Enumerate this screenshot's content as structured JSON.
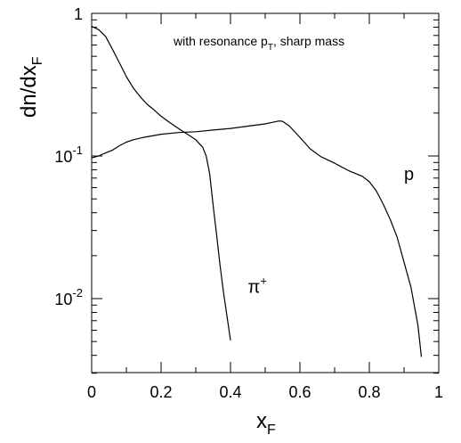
{
  "chart_data": {
    "type": "line",
    "annotation": {
      "prefix": "with resonance p",
      "subscript": "T",
      "suffix": ", sharp mass"
    },
    "xlabel": {
      "main": "x",
      "sub": "F"
    },
    "ylabel": {
      "main": "dn/dx",
      "sub": "F"
    },
    "xlim": [
      0,
      1
    ],
    "ylim": [
      0.003,
      1
    ],
    "y_scale": "log",
    "x_ticks": [
      {
        "value": 0,
        "label": "0"
      },
      {
        "value": 0.2,
        "label": "0.2"
      },
      {
        "value": 0.4,
        "label": "0.4"
      },
      {
        "value": 0.6,
        "label": "0.6"
      },
      {
        "value": 0.8,
        "label": "0.8"
      },
      {
        "value": 1,
        "label": "1"
      }
    ],
    "y_ticks": [
      {
        "value": 1,
        "base": "1",
        "exp": ""
      },
      {
        "value": 0.1,
        "base": "10",
        "exp": "-1"
      },
      {
        "value": 0.01,
        "base": "10",
        "exp": "-2"
      }
    ],
    "series": [
      {
        "label": {
          "main": "π",
          "sup": "+"
        },
        "x": [
          0.0,
          0.02,
          0.04,
          0.06,
          0.08,
          0.1,
          0.12,
          0.14,
          0.16,
          0.18,
          0.2,
          0.22,
          0.24,
          0.26,
          0.28,
          0.3,
          0.32,
          0.33,
          0.34,
          0.35,
          0.36,
          0.37,
          0.38,
          0.39,
          0.4
        ],
        "y": [
          0.81,
          0.77,
          0.69,
          0.56,
          0.45,
          0.36,
          0.3,
          0.26,
          0.23,
          0.21,
          0.19,
          0.175,
          0.162,
          0.15,
          0.14,
          0.13,
          0.115,
          0.1,
          0.075,
          0.045,
          0.028,
          0.017,
          0.011,
          0.0075,
          0.0051
        ]
      },
      {
        "label": {
          "main": "p",
          "sup": ""
        },
        "x": [
          0.0,
          0.02,
          0.04,
          0.06,
          0.08,
          0.1,
          0.12,
          0.15,
          0.2,
          0.25,
          0.3,
          0.35,
          0.4,
          0.45,
          0.5,
          0.52,
          0.54,
          0.55,
          0.57,
          0.6,
          0.63,
          0.66,
          0.7,
          0.74,
          0.78,
          0.8,
          0.82,
          0.84,
          0.86,
          0.88,
          0.9,
          0.92,
          0.94,
          0.95
        ],
        "y": [
          0.097,
          0.1,
          0.105,
          0.11,
          0.118,
          0.125,
          0.13,
          0.135,
          0.142,
          0.146,
          0.148,
          0.152,
          0.156,
          0.162,
          0.168,
          0.172,
          0.176,
          0.175,
          0.162,
          0.135,
          0.112,
          0.099,
          0.089,
          0.079,
          0.072,
          0.066,
          0.057,
          0.046,
          0.036,
          0.027,
          0.018,
          0.012,
          0.0065,
          0.0039
        ]
      }
    ],
    "series_label_positions": [
      {
        "x": 0.45,
        "y": 0.011
      },
      {
        "x": 0.9,
        "y": 0.068
      }
    ],
    "colors": {
      "line": "#000000",
      "frame": "#000000",
      "background": "#ffffff"
    },
    "grid": false
  }
}
